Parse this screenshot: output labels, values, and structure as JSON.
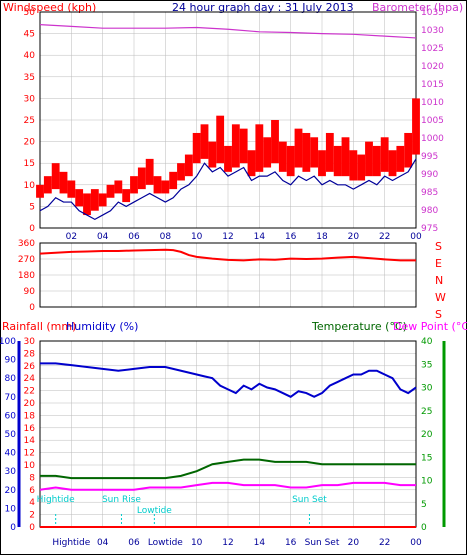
{
  "header": {
    "title": "24 hour graph day : 31 July 2013",
    "left_label": "Windspeed (kph)",
    "right_label": "Barometer (hpa)"
  },
  "colors": {
    "wind_gust": "#ff0000",
    "wind_avg": "#000099",
    "barometer": "#cc33cc",
    "direction": "#ff0000",
    "humidity": "#0000cc",
    "temperature": "#006600",
    "dewpoint": "#ff00ff",
    "rainfall": "#ff0000",
    "annotation": "#00cccc",
    "grid": "#bbbbbb",
    "axis_left": "#ff0000",
    "axis_right_top": "#cc33cc",
    "axis_right_bottom": "#009900",
    "axis_humidity": "#0000cc"
  },
  "x_ticks": [
    "02",
    "04",
    "06",
    "08",
    "10",
    "12",
    "14",
    "16",
    "18",
    "20",
    "22",
    "00"
  ],
  "bottom_x_ticks": [
    "Hightide",
    "04",
    "06",
    "Lowtide",
    "10",
    "12",
    "14",
    "16",
    "Sun Set",
    "20",
    "22",
    "00"
  ],
  "chart_data": [
    {
      "type": "line",
      "name": "wind-and-barometer",
      "xlabel": "",
      "x_range_hours": [
        0,
        24
      ],
      "left_axis": {
        "label": "Windspeed (kph)",
        "ylim": [
          0,
          50
        ],
        "ticks": [
          0,
          5,
          10,
          15,
          20,
          25,
          30,
          35,
          40,
          45,
          50
        ]
      },
      "right_axis": {
        "label": "Barometer (hpa)",
        "ylim": [
          975,
          1035
        ],
        "ticks": [
          975,
          980,
          985,
          990,
          995,
          1000,
          1005,
          1010,
          1015,
          1020,
          1025,
          1030,
          1035
        ]
      },
      "series": [
        {
          "name": "Windspeed (kph)",
          "axis": "left",
          "style": "gust-bars",
          "x": [
            0,
            0.5,
            1,
            1.5,
            2,
            2.5,
            3,
            3.5,
            4,
            4.5,
            5,
            5.5,
            6,
            6.5,
            7,
            7.5,
            8,
            8.5,
            9,
            9.5,
            10,
            10.5,
            11,
            11.5,
            12,
            12.5,
            13,
            13.5,
            14,
            14.5,
            15,
            15.5,
            16,
            16.5,
            17,
            17.5,
            18,
            18.5,
            19,
            19.5,
            20,
            20.5,
            21,
            21.5,
            22,
            22.5,
            23,
            23.5,
            24
          ],
          "values": [
            10,
            12,
            15,
            13,
            11,
            9,
            8,
            9,
            8,
            10,
            11,
            9,
            12,
            14,
            16,
            12,
            11,
            13,
            15,
            17,
            22,
            24,
            20,
            26,
            19,
            24,
            23,
            18,
            24,
            21,
            25,
            20,
            19,
            23,
            22,
            21,
            18,
            22,
            19,
            21,
            18,
            17,
            20,
            19,
            21,
            18,
            19,
            22,
            30
          ],
          "lows": [
            7,
            8,
            9,
            8,
            7,
            5,
            3,
            4,
            5,
            7,
            8,
            6,
            8,
            9,
            10,
            8,
            8,
            9,
            11,
            12,
            15,
            16,
            14,
            15,
            13,
            14,
            15,
            12,
            13,
            14,
            15,
            13,
            12,
            14,
            13,
            14,
            12,
            13,
            12,
            12,
            11,
            11,
            12,
            12,
            13,
            12,
            13,
            14,
            17
          ]
        },
        {
          "name": "Average windspeed",
          "axis": "left",
          "style": "line",
          "x": [
            0,
            0.5,
            1,
            1.5,
            2,
            2.5,
            3,
            3.5,
            4,
            4.5,
            5,
            5.5,
            6,
            6.5,
            7,
            7.5,
            8,
            8.5,
            9,
            9.5,
            10,
            10.5,
            11,
            11.5,
            12,
            12.5,
            13,
            13.5,
            14,
            14.5,
            15,
            15.5,
            16,
            16.5,
            17,
            17.5,
            18,
            18.5,
            19,
            19.5,
            20,
            20.5,
            21,
            21.5,
            22,
            22.5,
            23,
            23.5,
            24
          ],
          "values": [
            4,
            5,
            7,
            6,
            6,
            4,
            3,
            2,
            3,
            4,
            6,
            5,
            6,
            7,
            8,
            7,
            6,
            7,
            9,
            10,
            12,
            15,
            13,
            14,
            12,
            13,
            14,
            11,
            12,
            12,
            13,
            11,
            10,
            12,
            11,
            12,
            10,
            11,
            10,
            10,
            9,
            10,
            11,
            10,
            12,
            11,
            12,
            13,
            16
          ]
        },
        {
          "name": "Barometer (hpa)",
          "axis": "right",
          "style": "line",
          "x": [
            0,
            2,
            4,
            6,
            8,
            10,
            12,
            14,
            16,
            18,
            20,
            22,
            24
          ],
          "values": [
            1031.5,
            1031.0,
            1030.5,
            1030.5,
            1030.5,
            1030.7,
            1030.2,
            1029.5,
            1029.3,
            1029.0,
            1028.8,
            1028.3,
            1027.8
          ]
        }
      ]
    },
    {
      "type": "line",
      "name": "wind-direction",
      "x_range_hours": [
        0,
        24
      ],
      "left_axis": {
        "ylim": [
          0,
          360
        ],
        "ticks": [
          0,
          90,
          180,
          270,
          360
        ]
      },
      "right_labels": [
        "S",
        "E",
        "N",
        "W",
        "S"
      ],
      "series": [
        {
          "name": "Wind direction",
          "x": [
            0,
            1,
            2,
            3,
            4,
            5,
            6,
            7,
            8,
            8.5,
            9,
            9.5,
            10,
            11,
            12,
            13,
            14,
            15,
            16,
            17,
            18,
            19,
            20,
            21,
            22,
            23,
            24
          ],
          "values": [
            300,
            305,
            310,
            312,
            315,
            315,
            318,
            320,
            322,
            320,
            310,
            292,
            282,
            272,
            265,
            262,
            268,
            266,
            272,
            270,
            272,
            278,
            282,
            275,
            268,
            262,
            262
          ]
        }
      ]
    },
    {
      "type": "line",
      "name": "temperature-humidity-rain",
      "x_range_hours": [
        0,
        24
      ],
      "labels": {
        "rainfall": "Rainfall (mm)",
        "humidity": "Humidity (%)",
        "temperature": "Temperature (°C)",
        "dewpoint": "Dew Point (°C)"
      },
      "humidity_axis": {
        "ylim": [
          0,
          100
        ],
        "ticks": [
          0,
          10,
          20,
          30,
          40,
          50,
          60,
          70,
          80,
          90,
          100
        ]
      },
      "rain_axis": {
        "ylim": [
          0,
          30
        ],
        "ticks": [
          0,
          2,
          4,
          6,
          8,
          10,
          12,
          14,
          16,
          18,
          20,
          22,
          24,
          26,
          28,
          30
        ]
      },
      "temperature_axis": {
        "ylim": [
          0,
          40
        ],
        "ticks": [
          0,
          5,
          10,
          15,
          20,
          25,
          30,
          35,
          40
        ]
      },
      "series": [
        {
          "name": "Humidity (%)",
          "x": [
            0,
            1,
            2,
            3,
            4,
            5,
            6,
            7,
            8,
            9,
            10,
            10.5,
            11,
            11.5,
            12,
            12.5,
            13,
            13.5,
            14,
            14.5,
            15,
            15.5,
            16,
            16.5,
            17,
            17.5,
            18,
            18.5,
            19,
            19.5,
            20,
            20.5,
            21,
            21.5,
            22,
            22.5,
            23,
            23.5,
            24
          ],
          "values": [
            88,
            88,
            87,
            86,
            85,
            84,
            85,
            86,
            86,
            84,
            82,
            81,
            80,
            76,
            74,
            72,
            76,
            74,
            77,
            75,
            74,
            72,
            70,
            73,
            72,
            70,
            72,
            76,
            78,
            80,
            82,
            82,
            84,
            84,
            82,
            80,
            74,
            72,
            75
          ]
        },
        {
          "name": "Temperature (°C)",
          "x": [
            0,
            1,
            2,
            3,
            4,
            5,
            6,
            7,
            8,
            9,
            10,
            11,
            12,
            13,
            14,
            15,
            16,
            17,
            18,
            19,
            20,
            21,
            22,
            23,
            24
          ],
          "values": [
            11.0,
            11.0,
            10.5,
            10.5,
            10.5,
            10.5,
            10.5,
            10.5,
            10.5,
            11.0,
            12.0,
            13.5,
            14.0,
            14.5,
            14.5,
            14.0,
            14.0,
            14.0,
            13.5,
            13.5,
            13.5,
            13.5,
            13.5,
            13.5,
            13.5
          ]
        },
        {
          "name": "Dew Point (°C)",
          "x": [
            0,
            1,
            2,
            3,
            4,
            5,
            6,
            7,
            8,
            9,
            10,
            11,
            12,
            13,
            14,
            15,
            16,
            17,
            18,
            19,
            20,
            21,
            22,
            23,
            24
          ],
          "values": [
            8.0,
            8.5,
            8.0,
            8.0,
            8.0,
            8.0,
            8.0,
            8.5,
            8.5,
            8.5,
            9.0,
            9.5,
            9.5,
            9.0,
            9.0,
            9.0,
            8.5,
            8.5,
            9.0,
            9.0,
            9.5,
            9.5,
            9.5,
            9.0,
            9.0
          ]
        },
        {
          "name": "Rainfall (mm)",
          "x": [
            0,
            24
          ],
          "values": [
            0,
            0
          ]
        }
      ],
      "annotations": [
        {
          "label": "Hightide",
          "hour": 1.0
        },
        {
          "label": "Sun Rise",
          "hour": 5.2
        },
        {
          "label": "Lowtide",
          "hour": 7.3
        },
        {
          "label": "Sun Set",
          "hour": 17.2
        }
      ]
    }
  ]
}
